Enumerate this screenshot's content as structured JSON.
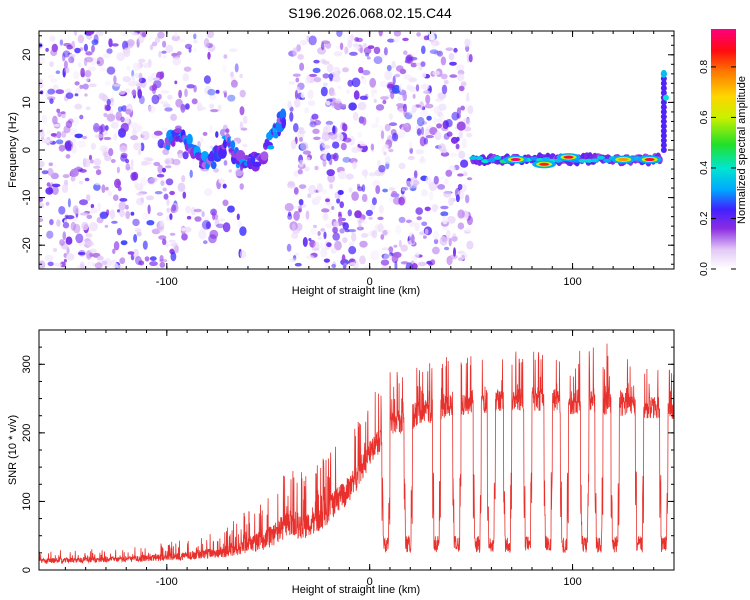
{
  "title": "S196.2026.068.02.15.C44",
  "chart_data": [
    {
      "type": "heatmap",
      "xlabel": "Height of straight line (km)",
      "ylabel": "Frequency (Hz)",
      "xlim": [
        -163,
        150
      ],
      "ylim": [
        -25,
        25
      ],
      "xticks": [
        -100,
        0,
        100
      ],
      "yticks": [
        -20,
        -10,
        0,
        10,
        20
      ],
      "colorbar": {
        "label": "Normalized spectral amplitude",
        "range": [
          0,
          0.95
        ],
        "ticks": [
          0.0,
          0.2,
          0.4,
          0.6,
          0.8
        ]
      },
      "noise_regions": [
        {
          "x": [
            -163,
            -95
          ],
          "density": "high"
        },
        {
          "x": [
            -95,
            -60
          ],
          "density": "medium"
        },
        {
          "x": [
            -40,
            50
          ],
          "density": "high"
        }
      ],
      "signal_track": [
        {
          "x": -100,
          "freq": 1
        },
        {
          "x": -95,
          "freq": 3
        },
        {
          "x": -90,
          "freq": 2
        },
        {
          "x": -85,
          "freq": -1
        },
        {
          "x": -80,
          "freq": -3
        },
        {
          "x": -75,
          "freq": -1
        },
        {
          "x": -70,
          "freq": 2
        },
        {
          "x": -65,
          "freq": -2
        },
        {
          "x": -60,
          "freq": -3
        },
        {
          "x": -55,
          "freq": -2
        },
        {
          "x": -50,
          "freq": 1
        },
        {
          "x": -45,
          "freq": 5
        },
        {
          "x": -42,
          "freq": 7
        }
      ],
      "line_segment": {
        "x": [
          51,
          143
        ],
        "freq": -2
      },
      "line_peaks": [
        {
          "x": 72,
          "freq": -2,
          "amp": 0.95
        },
        {
          "x": 86,
          "freq": -3,
          "amp": 0.85
        },
        {
          "x": 98,
          "freq": -1.5,
          "amp": 0.9
        },
        {
          "x": 125,
          "freq": -2,
          "amp": 0.75
        },
        {
          "x": 138,
          "freq": -2,
          "amp": 0.9
        }
      ],
      "late_branch": {
        "x": 145,
        "freq": [
          0,
          16
        ]
      }
    },
    {
      "type": "line",
      "xlabel": "Height of straight line (km)",
      "ylabel": "SNR (10 * v/v)",
      "xlim": [
        -163,
        150
      ],
      "ylim": [
        0,
        350
      ],
      "xticks": [
        -100,
        0,
        100
      ],
      "yticks": [
        0,
        100,
        200,
        300
      ],
      "series_color": "#e8312c",
      "envelope": [
        {
          "x": -163,
          "base": 12,
          "high": 28
        },
        {
          "x": -120,
          "base": 14,
          "high": 32
        },
        {
          "x": -90,
          "base": 18,
          "high": 45
        },
        {
          "x": -70,
          "base": 24,
          "high": 65
        },
        {
          "x": -50,
          "base": 40,
          "high": 110
        },
        {
          "x": -40,
          "base": 60,
          "high": 150
        },
        {
          "x": -30,
          "base": 55,
          "high": 140
        },
        {
          "x": -20,
          "base": 80,
          "high": 175
        },
        {
          "x": -10,
          "base": 110,
          "high": 200
        },
        {
          "x": 0,
          "base": 160,
          "high": 250
        },
        {
          "x": 10,
          "base": 205,
          "high": 290
        },
        {
          "x": 20,
          "base": 215,
          "high": 300
        },
        {
          "x": 40,
          "base": 235,
          "high": 315
        },
        {
          "x": 60,
          "base": 240,
          "high": 318
        },
        {
          "x": 80,
          "base": 242,
          "high": 320
        },
        {
          "x": 100,
          "base": 238,
          "high": 318
        },
        {
          "x": 115,
          "base": 240,
          "high": 345
        },
        {
          "x": 130,
          "base": 232,
          "high": 305
        },
        {
          "x": 150,
          "base": 228,
          "high": 300
        }
      ],
      "dropouts": [
        {
          "x": 8,
          "min": 25
        },
        {
          "x": 19,
          "min": 25
        },
        {
          "x": 33,
          "min": 25
        },
        {
          "x": 43,
          "min": 25
        },
        {
          "x": 53,
          "min": 25
        },
        {
          "x": 60,
          "min": 25
        },
        {
          "x": 68,
          "min": 25
        },
        {
          "x": 78,
          "min": 25
        },
        {
          "x": 88,
          "min": 25
        },
        {
          "x": 96,
          "min": 25
        },
        {
          "x": 106,
          "min": 25
        },
        {
          "x": 113,
          "min": 25
        },
        {
          "x": 121,
          "min": 25
        },
        {
          "x": 133,
          "min": 25
        },
        {
          "x": 145,
          "min": 25
        }
      ]
    }
  ]
}
